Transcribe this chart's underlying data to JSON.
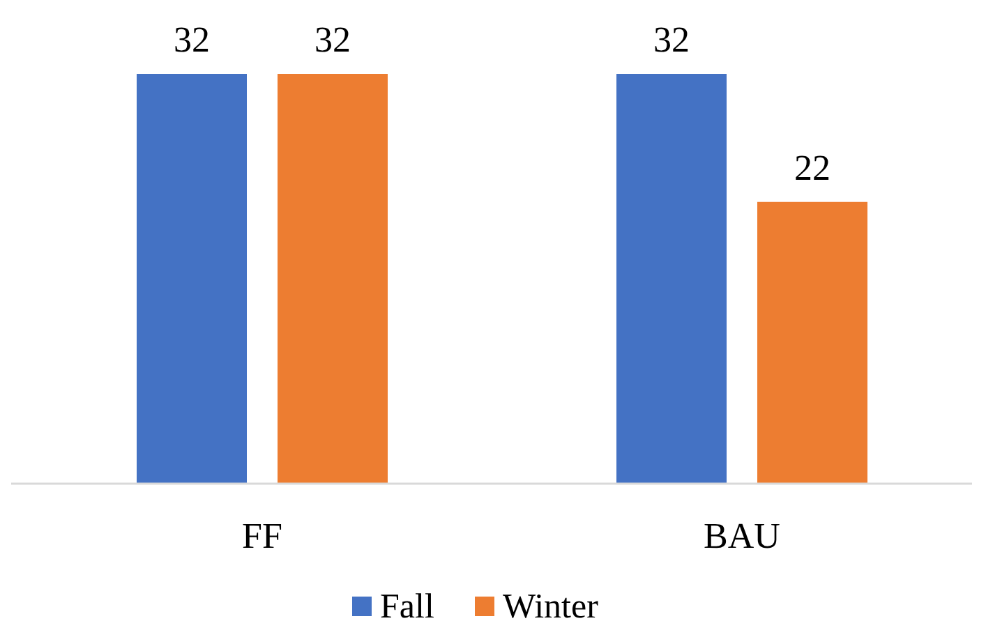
{
  "chart_data": {
    "type": "bar",
    "categories": [
      "FF",
      "BAU"
    ],
    "series": [
      {
        "name": "Fall",
        "color": "#4472c4",
        "values": [
          32,
          32
        ]
      },
      {
        "name": "Winter",
        "color": "#ed7d31",
        "values": [
          32,
          22
        ]
      }
    ],
    "data_labels": true,
    "legend": "bottom"
  }
}
